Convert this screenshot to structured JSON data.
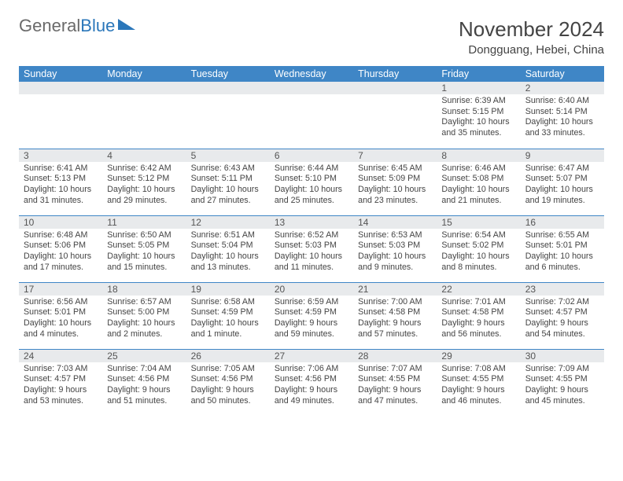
{
  "logo": {
    "text_gray": "General",
    "text_blue": "Blue"
  },
  "title": "November 2024",
  "location": "Dongguang, Hebei, China",
  "colors": {
    "header_bg": "#3f86c6",
    "header_text": "#ffffff",
    "daynum_bg": "#e8eaec",
    "border": "#3f86c6",
    "body_text": "#444444",
    "logo_gray": "#6a6a6a",
    "logo_blue": "#2b77ba"
  },
  "day_headers": [
    "Sunday",
    "Monday",
    "Tuesday",
    "Wednesday",
    "Thursday",
    "Friday",
    "Saturday"
  ],
  "weeks": [
    [
      {
        "n": "",
        "sr": "",
        "ss": "",
        "dl": ""
      },
      {
        "n": "",
        "sr": "",
        "ss": "",
        "dl": ""
      },
      {
        "n": "",
        "sr": "",
        "ss": "",
        "dl": ""
      },
      {
        "n": "",
        "sr": "",
        "ss": "",
        "dl": ""
      },
      {
        "n": "",
        "sr": "",
        "ss": "",
        "dl": ""
      },
      {
        "n": "1",
        "sr": "Sunrise: 6:39 AM",
        "ss": "Sunset: 5:15 PM",
        "dl": "Daylight: 10 hours and 35 minutes."
      },
      {
        "n": "2",
        "sr": "Sunrise: 6:40 AM",
        "ss": "Sunset: 5:14 PM",
        "dl": "Daylight: 10 hours and 33 minutes."
      }
    ],
    [
      {
        "n": "3",
        "sr": "Sunrise: 6:41 AM",
        "ss": "Sunset: 5:13 PM",
        "dl": "Daylight: 10 hours and 31 minutes."
      },
      {
        "n": "4",
        "sr": "Sunrise: 6:42 AM",
        "ss": "Sunset: 5:12 PM",
        "dl": "Daylight: 10 hours and 29 minutes."
      },
      {
        "n": "5",
        "sr": "Sunrise: 6:43 AM",
        "ss": "Sunset: 5:11 PM",
        "dl": "Daylight: 10 hours and 27 minutes."
      },
      {
        "n": "6",
        "sr": "Sunrise: 6:44 AM",
        "ss": "Sunset: 5:10 PM",
        "dl": "Daylight: 10 hours and 25 minutes."
      },
      {
        "n": "7",
        "sr": "Sunrise: 6:45 AM",
        "ss": "Sunset: 5:09 PM",
        "dl": "Daylight: 10 hours and 23 minutes."
      },
      {
        "n": "8",
        "sr": "Sunrise: 6:46 AM",
        "ss": "Sunset: 5:08 PM",
        "dl": "Daylight: 10 hours and 21 minutes."
      },
      {
        "n": "9",
        "sr": "Sunrise: 6:47 AM",
        "ss": "Sunset: 5:07 PM",
        "dl": "Daylight: 10 hours and 19 minutes."
      }
    ],
    [
      {
        "n": "10",
        "sr": "Sunrise: 6:48 AM",
        "ss": "Sunset: 5:06 PM",
        "dl": "Daylight: 10 hours and 17 minutes."
      },
      {
        "n": "11",
        "sr": "Sunrise: 6:50 AM",
        "ss": "Sunset: 5:05 PM",
        "dl": "Daylight: 10 hours and 15 minutes."
      },
      {
        "n": "12",
        "sr": "Sunrise: 6:51 AM",
        "ss": "Sunset: 5:04 PM",
        "dl": "Daylight: 10 hours and 13 minutes."
      },
      {
        "n": "13",
        "sr": "Sunrise: 6:52 AM",
        "ss": "Sunset: 5:03 PM",
        "dl": "Daylight: 10 hours and 11 minutes."
      },
      {
        "n": "14",
        "sr": "Sunrise: 6:53 AM",
        "ss": "Sunset: 5:03 PM",
        "dl": "Daylight: 10 hours and 9 minutes."
      },
      {
        "n": "15",
        "sr": "Sunrise: 6:54 AM",
        "ss": "Sunset: 5:02 PM",
        "dl": "Daylight: 10 hours and 8 minutes."
      },
      {
        "n": "16",
        "sr": "Sunrise: 6:55 AM",
        "ss": "Sunset: 5:01 PM",
        "dl": "Daylight: 10 hours and 6 minutes."
      }
    ],
    [
      {
        "n": "17",
        "sr": "Sunrise: 6:56 AM",
        "ss": "Sunset: 5:01 PM",
        "dl": "Daylight: 10 hours and 4 minutes."
      },
      {
        "n": "18",
        "sr": "Sunrise: 6:57 AM",
        "ss": "Sunset: 5:00 PM",
        "dl": "Daylight: 10 hours and 2 minutes."
      },
      {
        "n": "19",
        "sr": "Sunrise: 6:58 AM",
        "ss": "Sunset: 4:59 PM",
        "dl": "Daylight: 10 hours and 1 minute."
      },
      {
        "n": "20",
        "sr": "Sunrise: 6:59 AM",
        "ss": "Sunset: 4:59 PM",
        "dl": "Daylight: 9 hours and 59 minutes."
      },
      {
        "n": "21",
        "sr": "Sunrise: 7:00 AM",
        "ss": "Sunset: 4:58 PM",
        "dl": "Daylight: 9 hours and 57 minutes."
      },
      {
        "n": "22",
        "sr": "Sunrise: 7:01 AM",
        "ss": "Sunset: 4:58 PM",
        "dl": "Daylight: 9 hours and 56 minutes."
      },
      {
        "n": "23",
        "sr": "Sunrise: 7:02 AM",
        "ss": "Sunset: 4:57 PM",
        "dl": "Daylight: 9 hours and 54 minutes."
      }
    ],
    [
      {
        "n": "24",
        "sr": "Sunrise: 7:03 AM",
        "ss": "Sunset: 4:57 PM",
        "dl": "Daylight: 9 hours and 53 minutes."
      },
      {
        "n": "25",
        "sr": "Sunrise: 7:04 AM",
        "ss": "Sunset: 4:56 PM",
        "dl": "Daylight: 9 hours and 51 minutes."
      },
      {
        "n": "26",
        "sr": "Sunrise: 7:05 AM",
        "ss": "Sunset: 4:56 PM",
        "dl": "Daylight: 9 hours and 50 minutes."
      },
      {
        "n": "27",
        "sr": "Sunrise: 7:06 AM",
        "ss": "Sunset: 4:56 PM",
        "dl": "Daylight: 9 hours and 49 minutes."
      },
      {
        "n": "28",
        "sr": "Sunrise: 7:07 AM",
        "ss": "Sunset: 4:55 PM",
        "dl": "Daylight: 9 hours and 47 minutes."
      },
      {
        "n": "29",
        "sr": "Sunrise: 7:08 AM",
        "ss": "Sunset: 4:55 PM",
        "dl": "Daylight: 9 hours and 46 minutes."
      },
      {
        "n": "30",
        "sr": "Sunrise: 7:09 AM",
        "ss": "Sunset: 4:55 PM",
        "dl": "Daylight: 9 hours and 45 minutes."
      }
    ]
  ]
}
